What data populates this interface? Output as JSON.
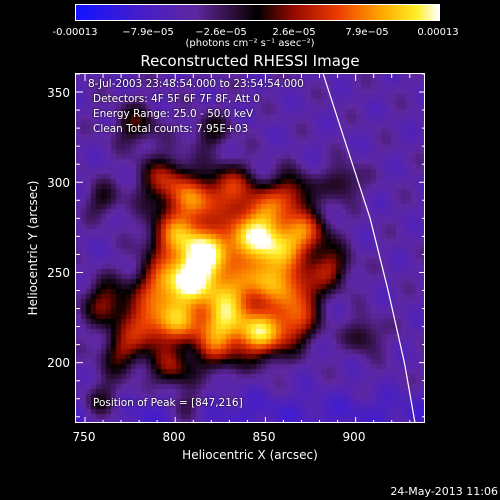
{
  "colorbar": {
    "tick_labels": [
      "-0.00013",
      "−7.9e−05",
      "−2.6e−05",
      "2.6e−05",
      "7.9e−05",
      "0.00013"
    ],
    "range": [
      -0.00013,
      0.00013
    ],
    "units": "(photons cm⁻² s⁻¹ asec⁻²)"
  },
  "chart_data": {
    "type": "heatmap",
    "title": "Reconstructed RHESSI Image",
    "xlabel": "Heliocentric X (arcsec)",
    "ylabel": "Heliocentric Y (arcsec)",
    "xlim": [
      745,
      939
    ],
    "ylim": [
      166,
      360
    ],
    "xticks": [
      750,
      800,
      850,
      900
    ],
    "yticks": [
      200,
      250,
      300,
      350
    ],
    "colormap": "RHESSI blue-purple-black-red-yellow-white",
    "peak_position": [
      847,
      216
    ],
    "limb_curve": [
      [
        882,
        360
      ],
      [
        895,
        320
      ],
      [
        908,
        280
      ],
      [
        918,
        240
      ],
      [
        927,
        200
      ],
      [
        933,
        166
      ]
    ],
    "sources": [
      {
        "x": 795,
        "y": 300,
        "amp": 0.62,
        "r": 10
      },
      {
        "x": 812,
        "y": 289,
        "amp": 0.68,
        "r": 9
      },
      {
        "x": 830,
        "y": 297,
        "amp": 0.6,
        "r": 9
      },
      {
        "x": 848,
        "y": 283,
        "amp": 0.72,
        "r": 10
      },
      {
        "x": 865,
        "y": 294,
        "amp": 0.55,
        "r": 8
      },
      {
        "x": 800,
        "y": 270,
        "amp": 0.78,
        "r": 10
      },
      {
        "x": 818,
        "y": 262,
        "amp": 0.9,
        "r": 10
      },
      {
        "x": 838,
        "y": 268,
        "amp": 0.72,
        "r": 9
      },
      {
        "x": 856,
        "y": 264,
        "amp": 0.85,
        "r": 10
      },
      {
        "x": 872,
        "y": 272,
        "amp": 0.66,
        "r": 9
      },
      {
        "x": 886,
        "y": 253,
        "amp": 0.52,
        "r": 8
      },
      {
        "x": 792,
        "y": 242,
        "amp": 0.74,
        "r": 10
      },
      {
        "x": 810,
        "y": 247,
        "amp": 0.94,
        "r": 10
      },
      {
        "x": 830,
        "y": 238,
        "amp": 0.8,
        "r": 10
      },
      {
        "x": 850,
        "y": 246,
        "amp": 0.74,
        "r": 9
      },
      {
        "x": 868,
        "y": 240,
        "amp": 0.66,
        "r": 9
      },
      {
        "x": 783,
        "y": 220,
        "amp": 0.64,
        "r": 9
      },
      {
        "x": 803,
        "y": 223,
        "amp": 0.8,
        "r": 10
      },
      {
        "x": 826,
        "y": 220,
        "amp": 0.76,
        "r": 9
      },
      {
        "x": 847,
        "y": 216,
        "amp": 1.0,
        "r": 10
      },
      {
        "x": 866,
        "y": 222,
        "amp": 0.6,
        "r": 9
      },
      {
        "x": 762,
        "y": 233,
        "amp": 0.52,
        "r": 9
      },
      {
        "x": 770,
        "y": 205,
        "amp": 0.46,
        "r": 8
      },
      {
        "x": 798,
        "y": 197,
        "amp": 0.5,
        "r": 8
      },
      {
        "x": 822,
        "y": 205,
        "amp": 0.42,
        "r": 8
      },
      {
        "x": 778,
        "y": 332,
        "amp": 0.4,
        "r": 8
      },
      {
        "x": 820,
        "y": 328,
        "amp": 0.34,
        "r": 7
      },
      {
        "x": 760,
        "y": 178,
        "amp": 0.38,
        "r": 8
      },
      {
        "x": 808,
        "y": 175,
        "amp": 0.32,
        "r": 7
      },
      {
        "x": 893,
        "y": 300,
        "amp": 0.36,
        "r": 7
      },
      {
        "x": 905,
        "y": 215,
        "amp": 0.34,
        "r": 7
      },
      {
        "x": 760,
        "y": 290,
        "amp": 0.3,
        "r": 7
      }
    ]
  },
  "info": {
    "time_range": "8-Jul-2003 23:48:54.000 to 23:54:54.000",
    "detectors": "Detectors: 4F 5F 6F 7F 8F, Att 0",
    "energy_range": "Energy Range: 25.0 - 50.0 keV",
    "method_counts": "Clean     Total counts: 7.95E+03",
    "peak_position": "Position of Peak = [847,216]"
  },
  "footer": {
    "date": "24-May-2013 11:06"
  }
}
